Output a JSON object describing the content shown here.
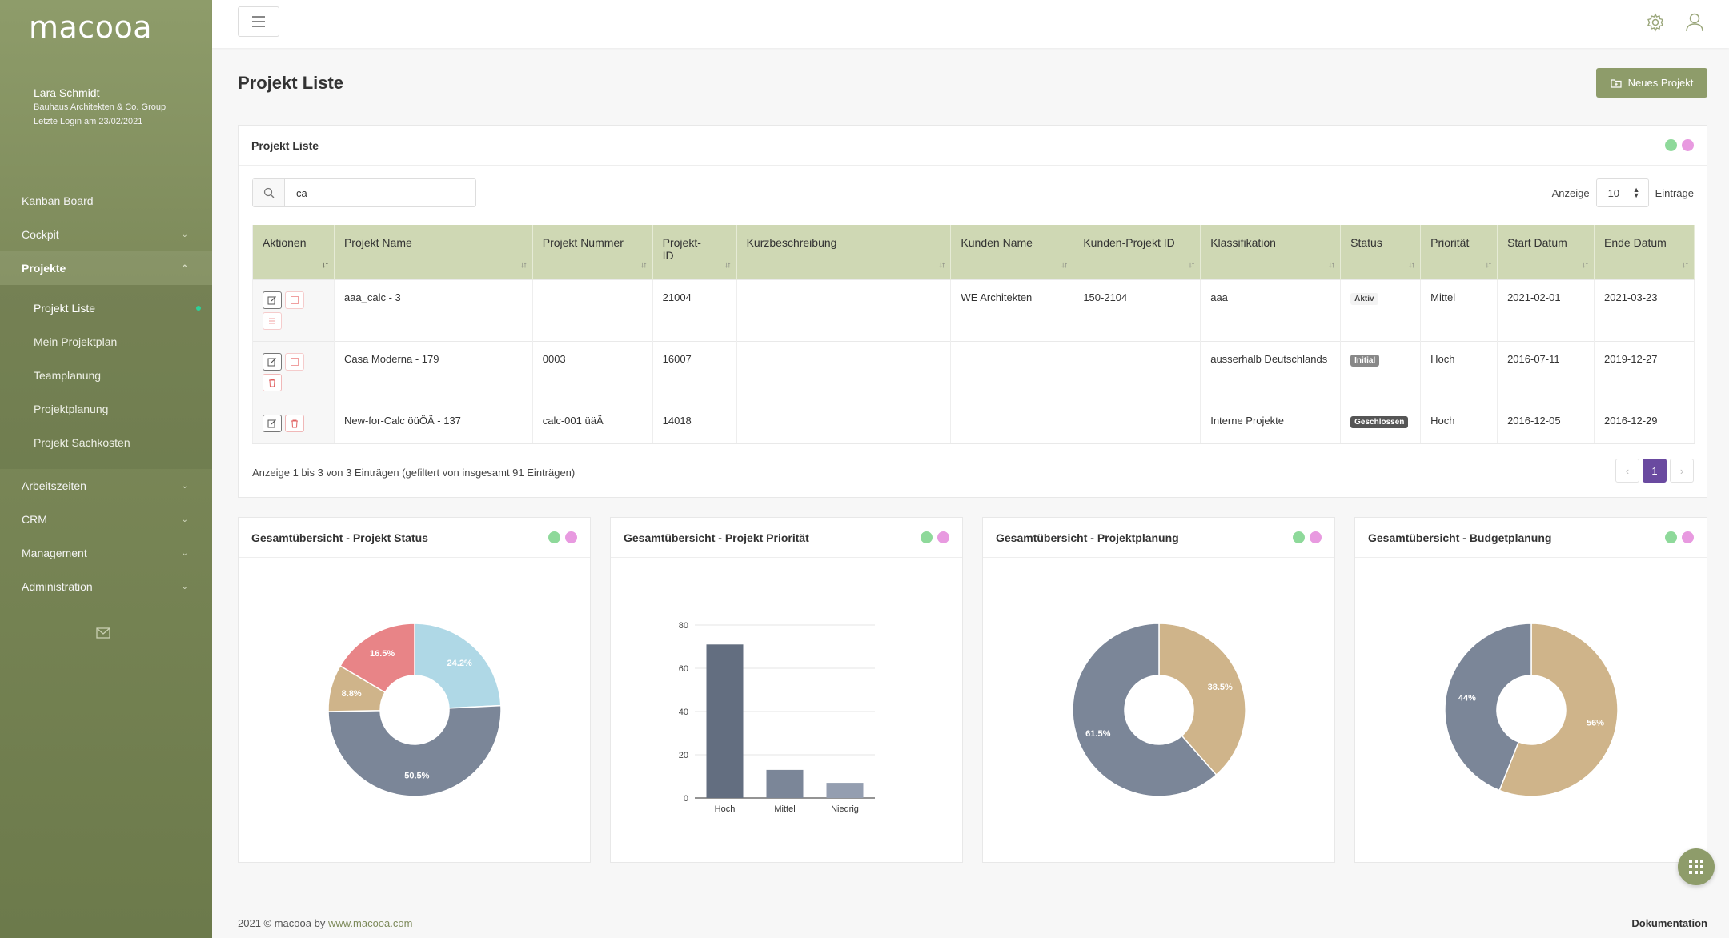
{
  "app": {
    "logo": "macooa"
  },
  "user": {
    "name": "Lara Schmidt",
    "company": "Bauhaus Architekten & Co. Group",
    "last_login": "Letzte Login am 23/02/2021"
  },
  "nav": {
    "kanban": "Kanban Board",
    "cockpit": "Cockpit",
    "projekte": "Projekte",
    "sub": {
      "projekt_liste": "Projekt Liste",
      "mein_projektplan": "Mein Projektplan",
      "teamplanung": "Teamplanung",
      "projektplanung": "Projektplanung",
      "projekt_sachkosten": "Projekt Sachkosten"
    },
    "arbeitszeiten": "Arbeitszeiten",
    "crm": "CRM",
    "management": "Management",
    "administration": "Administration"
  },
  "page": {
    "title": "Projekt Liste",
    "new_button": "Neues Projekt"
  },
  "list_card": {
    "title": "Projekt Liste"
  },
  "search": {
    "value": "ca"
  },
  "entries": {
    "label_before": "Anzeige",
    "value": "10",
    "label_after": "Einträge"
  },
  "table": {
    "headers": {
      "aktionen": "Aktionen",
      "projekt_name": "Projekt Name",
      "projekt_nummer": "Projekt Nummer",
      "projekt_id_1": "Projekt-",
      "projekt_id_2": "ID",
      "kurzbeschreibung": "Kurzbeschreibung",
      "kunden_name": "Kunden Name",
      "kunden_projekt_id": "Kunden-Projekt ID",
      "klassifikation": "Klassifikation",
      "status": "Status",
      "prioritaet": "Priorität",
      "start": "Start Datum",
      "ende": "Ende Datum"
    },
    "rows": [
      {
        "name": "aaa_calc - 3",
        "nummer": "",
        "id": "21004",
        "kurz": "",
        "kunde": "WE Architekten",
        "kunden_id": "150-2104",
        "klass": "aaa",
        "status": "Aktiv",
        "prio": "Mittel",
        "start": "2021-02-01",
        "ende": "2021-03-23"
      },
      {
        "name": "Casa Moderna - 179",
        "nummer": "0003",
        "id": "16007",
        "kurz": "",
        "kunde": "",
        "kunden_id": "",
        "klass": "ausserhalb Deutschlands",
        "status": "Initial",
        "prio": "Hoch",
        "start": "2016-07-11",
        "ende": "2019-12-27"
      },
      {
        "name": "New-for-Calc öüÖÄ - 137",
        "nummer": "calc-001 üäÄ",
        "id": "14018",
        "kurz": "",
        "kunde": "",
        "kunden_id": "",
        "klass": "Interne Projekte",
        "status": "Geschlossen",
        "prio": "Hoch",
        "start": "2016-12-05",
        "ende": "2016-12-29"
      }
    ]
  },
  "pagination": {
    "info": "Anzeige 1 bis 3 von 3 Einträgen (gefiltert von insgesamt 91 Einträgen)",
    "current": "1"
  },
  "colors": {
    "accent": "#8e9c6a",
    "page_current": "#6a4aa0"
  },
  "chart_data": [
    {
      "type": "pie",
      "title": "Gesamtübersicht - Projekt Status",
      "categories": [
        "",
        "",
        "",
        ""
      ],
      "values": [
        24.2,
        50.5,
        8.8,
        16.5
      ],
      "labels": [
        "24.2%",
        "50.5%",
        "8.8%",
        "16.5%"
      ],
      "colors": [
        "#afd8e6",
        "#7b8698",
        "#cfb48a",
        "#e88487"
      ],
      "donut": true
    },
    {
      "type": "bar",
      "title": "Gesamtübersicht - Projekt Priorität",
      "categories": [
        "Hoch",
        "Mittel",
        "Niedrig"
      ],
      "values": [
        71,
        13,
        7
      ],
      "ylim": [
        0,
        80
      ],
      "yticks": [
        "0",
        "20",
        "40",
        "60",
        "80"
      ],
      "colors": [
        "#636e80",
        "#7b8698",
        "#949eb0"
      ]
    },
    {
      "type": "pie",
      "title": "Gesamtübersicht - Projektplanung",
      "categories": [
        "",
        ""
      ],
      "values": [
        38.5,
        61.5
      ],
      "labels": [
        "38.5%",
        "61.5%"
      ],
      "colors": [
        "#cfb48a",
        "#7b8698"
      ],
      "donut": true
    },
    {
      "type": "pie",
      "title": "Gesamtübersicht - Budgetplanung",
      "categories": [
        "",
        ""
      ],
      "values": [
        56,
        44
      ],
      "labels": [
        "56%",
        "44%"
      ],
      "colors": [
        "#cfb48a",
        "#7b8698"
      ],
      "donut": true
    }
  ],
  "footer": {
    "prefix": "2021 © macooa by",
    "link": "www.macooa.com",
    "right": "Dokumentation"
  }
}
